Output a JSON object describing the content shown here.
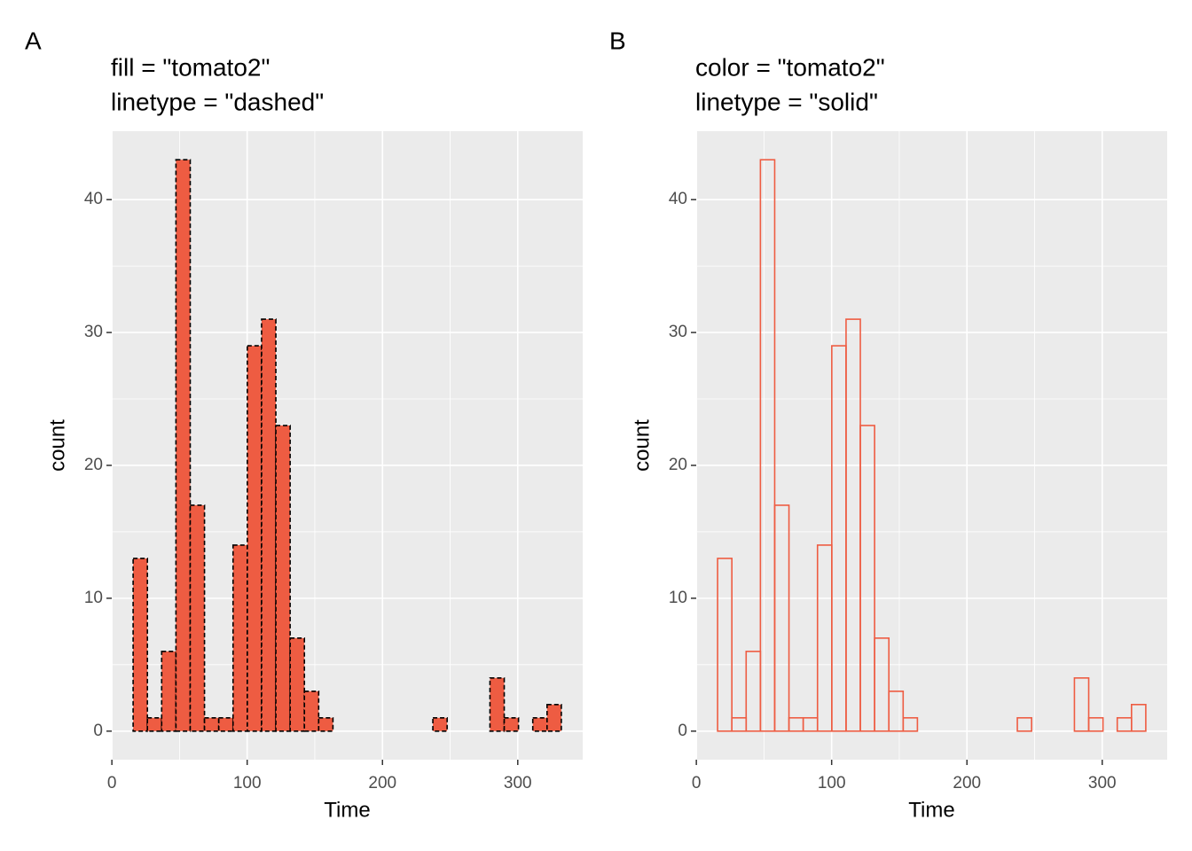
{
  "chart_data": [
    {
      "type": "histogram",
      "tag": "A",
      "title": [
        "fill = \"tomato2\"",
        "linetype = \"dashed\""
      ],
      "x_label": "Time",
      "y_label": "count",
      "bins": [
        15.7,
        26.25,
        36.8,
        47.35,
        57.9,
        68.45,
        79,
        89.55,
        100.1,
        110.65,
        121.2,
        131.75,
        142.3,
        152.85,
        163.4,
        173.95,
        184.5,
        195.05,
        205.6,
        216.15,
        226.7,
        237.25,
        247.8,
        258.35,
        268.9,
        279.45,
        290,
        300.55,
        311.1,
        321.65,
        332.2
      ],
      "counts": [
        13,
        1,
        6,
        43,
        17,
        1,
        1,
        14,
        29,
        31,
        23,
        7,
        3,
        1,
        0,
        0,
        0,
        0,
        0,
        0,
        0,
        1,
        0,
        0,
        0,
        4,
        1,
        0,
        1,
        2
      ],
      "fill": "#ee5c42",
      "color": "#000000",
      "linetype": "dashed",
      "xlim": [
        -0.1,
        348
      ],
      "xticks": [
        0,
        100,
        200,
        300
      ],
      "x_minor_ticks": [
        50,
        150,
        250
      ],
      "ylim": [
        -2.15,
        45.15
      ],
      "yticks": [
        0,
        10,
        20,
        30,
        40
      ],
      "y_minor_ticks": [
        5,
        15,
        25,
        35
      ],
      "grid": true
    },
    {
      "type": "histogram",
      "tag": "B",
      "title": [
        "color = \"tomato2\"",
        "linetype = \"solid\""
      ],
      "x_label": "Time",
      "y_label": "count",
      "bins": [
        15.7,
        26.25,
        36.8,
        47.35,
        57.9,
        68.45,
        79,
        89.55,
        100.1,
        110.65,
        121.2,
        131.75,
        142.3,
        152.85,
        163.4,
        173.95,
        184.5,
        195.05,
        205.6,
        216.15,
        226.7,
        237.25,
        247.8,
        258.35,
        268.9,
        279.45,
        290,
        300.55,
        311.1,
        321.65,
        332.2
      ],
      "counts": [
        13,
        1,
        6,
        43,
        17,
        1,
        1,
        14,
        29,
        31,
        23,
        7,
        3,
        1,
        0,
        0,
        0,
        0,
        0,
        0,
        0,
        1,
        0,
        0,
        0,
        4,
        1,
        0,
        1,
        2
      ],
      "fill": "none",
      "color": "#ee5c42",
      "linetype": "solid",
      "xlim": [
        -0.1,
        348
      ],
      "xticks": [
        0,
        100,
        200,
        300
      ],
      "x_minor_ticks": [
        50,
        150,
        250
      ],
      "ylim": [
        -2.15,
        45.15
      ],
      "yticks": [
        0,
        10,
        20,
        30,
        40
      ],
      "y_minor_ticks": [
        5,
        15,
        25,
        35
      ],
      "grid": true
    }
  ]
}
